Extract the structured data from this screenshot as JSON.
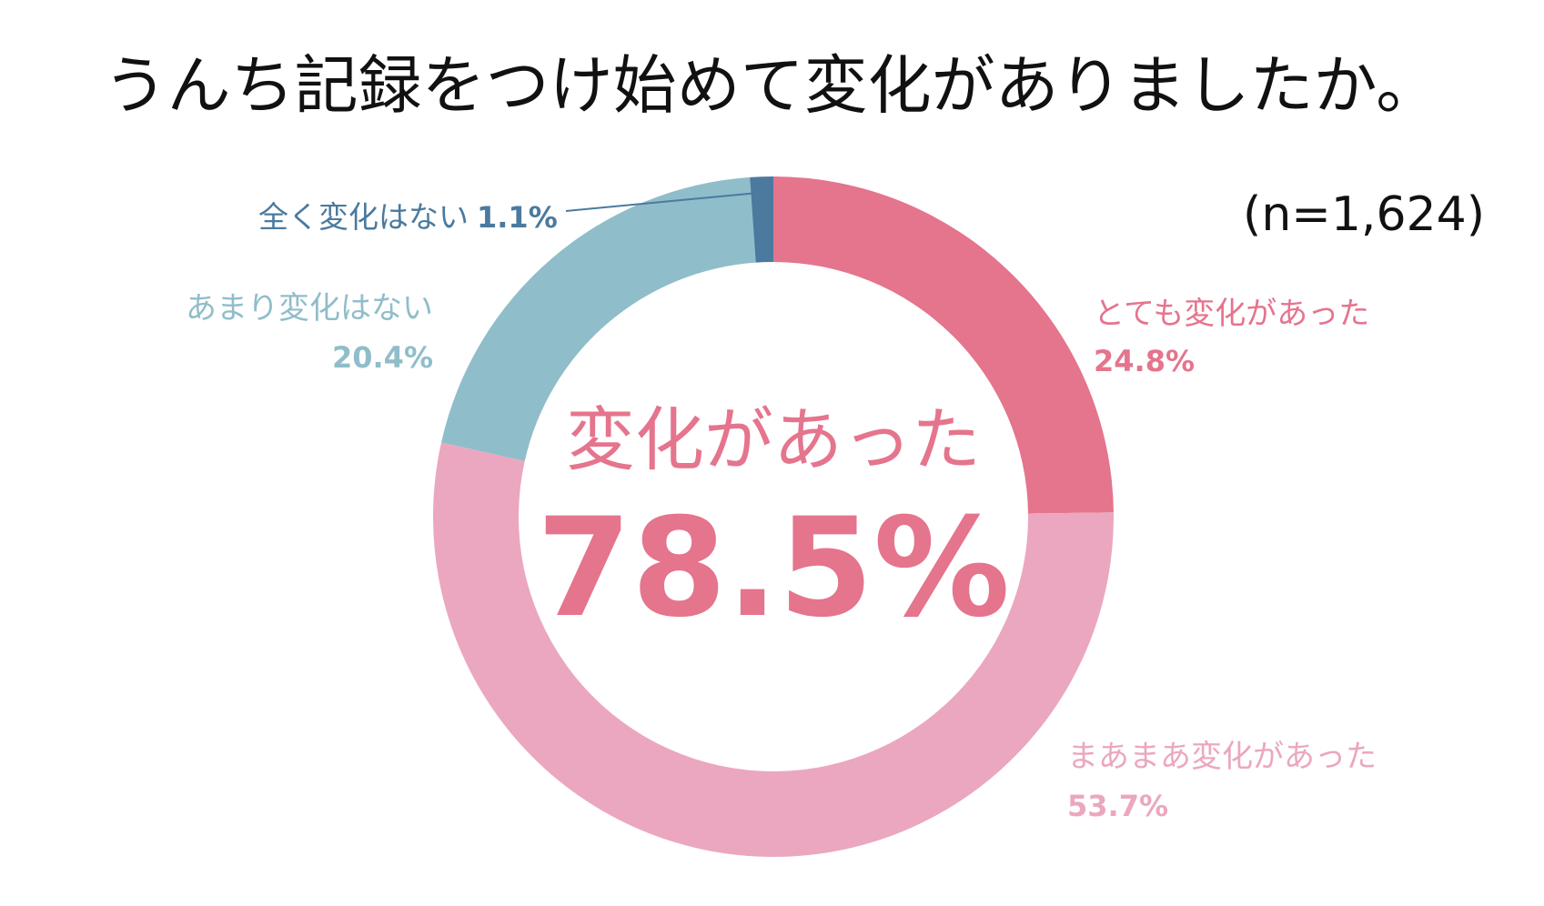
{
  "chart_data": {
    "type": "pie",
    "donut": true,
    "title": "うんち記録をつけ始めて変化がありましたか。",
    "sample_size": "(n=1,624)",
    "center": {
      "label": "変化があった",
      "value": "78.5%"
    },
    "slices": [
      {
        "name": "とても変化があった",
        "value": 24.8,
        "value_label": "24.8%",
        "color": "#e5748d"
      },
      {
        "name": "まあまあ変化があった",
        "value": 53.7,
        "value_label": "53.7%",
        "color": "#eba7bf"
      },
      {
        "name": "あまり変化はない",
        "value": 20.4,
        "value_label": "20.4%",
        "color": "#90bdca"
      },
      {
        "name": "全く変化はない",
        "value": 1.1,
        "value_label": "1.1%",
        "color": "#4b7a9e"
      }
    ],
    "start_angle": "12 o'clock",
    "direction": "clockwise"
  }
}
